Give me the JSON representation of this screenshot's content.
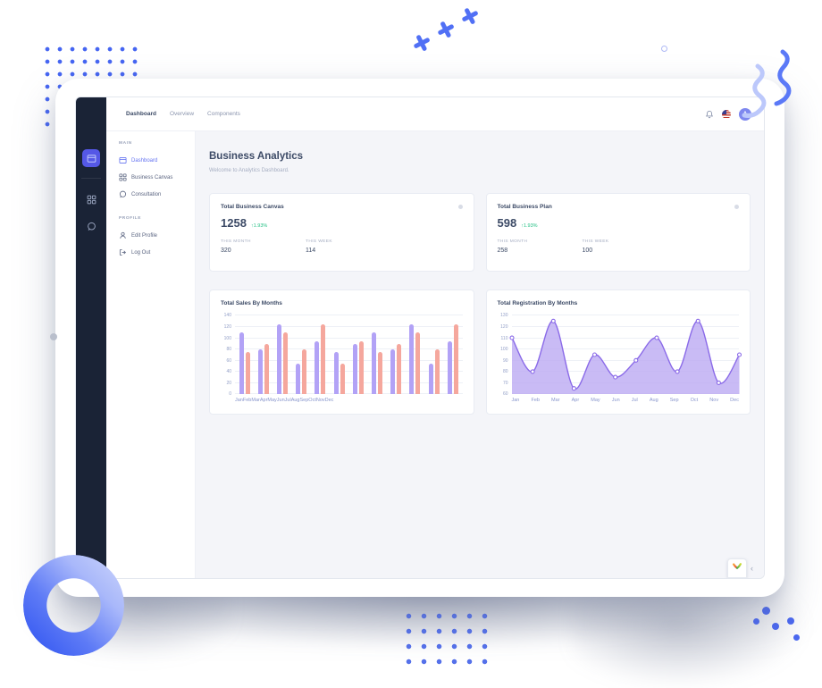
{
  "topbar": {
    "tabs": [
      {
        "label": "Dashboard",
        "active": true
      },
      {
        "label": "Overview",
        "active": false
      },
      {
        "label": "Components",
        "active": false
      }
    ],
    "notification_icon": "bell-icon",
    "language_flag": "us-flag-icon",
    "avatar_initial": "A"
  },
  "rail": {
    "items": [
      {
        "icon": "dashboard-icon",
        "active": true
      },
      {
        "icon": "grid-icon",
        "active": false
      },
      {
        "icon": "chat-icon",
        "active": false
      }
    ]
  },
  "sidebar": {
    "sections": [
      {
        "label": "MAIN",
        "items": [
          {
            "label": "Dashboard",
            "icon": "dashboard-icon",
            "active": true
          },
          {
            "label": "Business Canvas",
            "icon": "grid-icon",
            "active": false
          },
          {
            "label": "Consultation",
            "icon": "chat-icon",
            "active": false
          }
        ]
      },
      {
        "label": "PROFILE",
        "items": [
          {
            "label": "Edit Profile",
            "icon": "user-icon",
            "active": false
          },
          {
            "label": "Log Out",
            "icon": "logout-icon",
            "active": false
          }
        ]
      }
    ]
  },
  "main": {
    "title": "Business Analytics",
    "subtitle": "Welcome to Analytics Dashboard.",
    "stat_cards": [
      {
        "title": "Total Business Canvas",
        "value": "1258",
        "change_arrow": "↑",
        "change": "1.93%",
        "stats": [
          {
            "label": "THIS MONTH",
            "value": "320"
          },
          {
            "label": "THIS WEEK",
            "value": "114"
          }
        ]
      },
      {
        "title": "Total Business Plan",
        "value": "598",
        "change_arrow": "↑",
        "change": "1.93%",
        "stats": [
          {
            "label": "THIS MONTH",
            "value": "258"
          },
          {
            "label": "THIS WEEK",
            "value": "100"
          }
        ]
      }
    ]
  },
  "chart_data": [
    {
      "type": "bar",
      "title": "Total Sales By Months",
      "categories": [
        "Jan",
        "Feb",
        "Mar",
        "Apr",
        "May",
        "Jun",
        "Jul",
        "Aug",
        "Sep",
        "Oct",
        "Nov",
        "Dec"
      ],
      "series": [
        {
          "name": "sales-series-1",
          "color": "#b2a2f6",
          "values": [
            110,
            80,
            125,
            55,
            95,
            75,
            90,
            110,
            80,
            125,
            55,
            95
          ]
        },
        {
          "name": "sales-series-2",
          "color": "#f5a79d",
          "values": [
            75,
            90,
            110,
            80,
            125,
            55,
            95,
            75,
            90,
            110,
            80,
            125
          ]
        }
      ],
      "ylim": [
        0,
        140
      ],
      "ytick_step": 20,
      "grid": true,
      "legend": "none"
    },
    {
      "type": "area",
      "title": "Total Registration By Months",
      "categories": [
        "Jan",
        "Feb",
        "Mar",
        "Apr",
        "May",
        "Jun",
        "Jul",
        "Aug",
        "Sep",
        "Oct",
        "Nov",
        "Dec"
      ],
      "values": [
        110,
        80,
        125,
        65,
        95,
        75,
        90,
        110,
        80,
        125,
        70,
        95
      ],
      "line_color": "#8a6ae8",
      "fill_color": "#bcaaf2",
      "marker_fill": "#ffffff",
      "ylim": [
        60,
        130
      ],
      "ytick_step": 10,
      "grid": true,
      "legend": "none"
    }
  ],
  "widget": {
    "logo": "colorful-y-logo",
    "chevron": "‹"
  },
  "colors": {
    "accent": "#6574f1",
    "rail_bg": "#1a2336",
    "content_bg": "#f4f5f9",
    "positive": "#26c186",
    "decor_blue": "#4a67f2",
    "bar_purple": "#b2a2f6",
    "bar_salmon": "#f5a79d",
    "area_purple": "#8a6ae8"
  }
}
